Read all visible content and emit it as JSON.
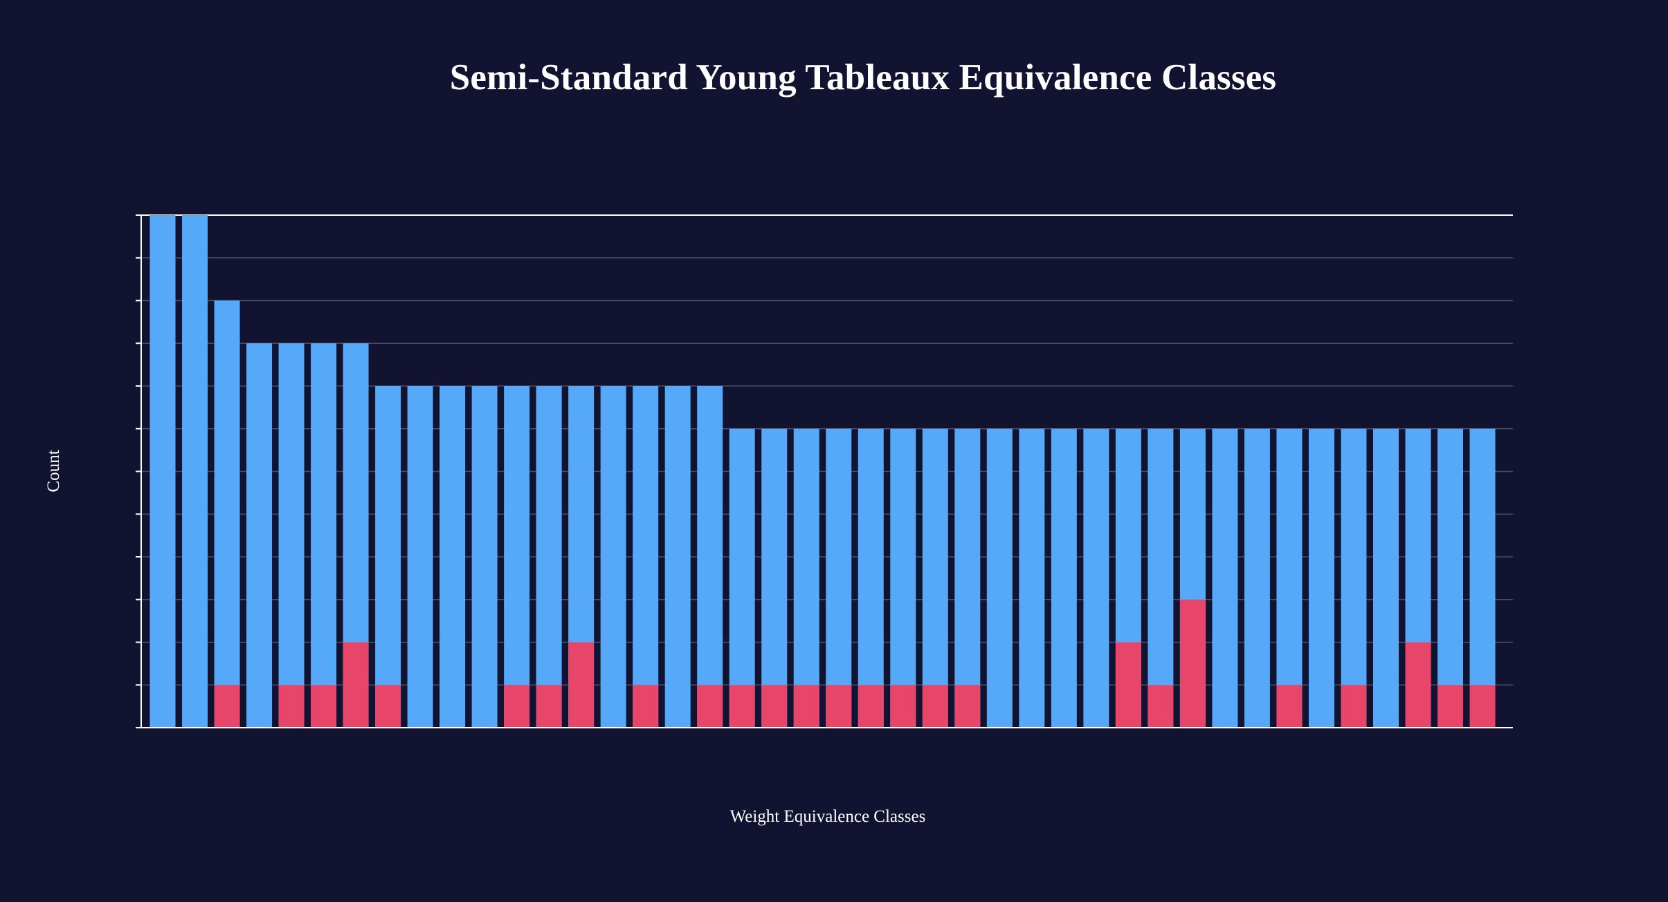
{
  "colors": {
    "background": "#111331",
    "bar_total": "#56a8f8",
    "bar_highlight": "#e8456a",
    "grid": "#4a4d66",
    "axis": "#ffffff",
    "text": "#ffffff"
  },
  "chart_data": {
    "type": "bar",
    "title": "Semi-Standard Young Tableaux Equivalence Classes",
    "xlabel": "Weight Equivalence Classes",
    "ylabel": "Count",
    "ylim": [
      0,
      12
    ],
    "grid": true,
    "barmode": "overlay",
    "tick_labels_shown": false,
    "series": [
      {
        "values": [
          12,
          12,
          10,
          9,
          9,
          9,
          9,
          8,
          8,
          8,
          8,
          8,
          8,
          8,
          8,
          8,
          8,
          8,
          7,
          7,
          7,
          7,
          7,
          7,
          7,
          7,
          7,
          7,
          7,
          7,
          7,
          7,
          7,
          7,
          7,
          7,
          7,
          7,
          7,
          7,
          7,
          7
        ]
      },
      {
        "values": [
          0,
          0,
          1,
          0,
          1,
          1,
          2,
          1,
          0,
          0,
          0,
          1,
          1,
          2,
          0,
          1,
          0,
          1,
          1,
          1,
          1,
          1,
          1,
          1,
          1,
          1,
          0,
          0,
          0,
          0,
          2,
          1,
          3,
          0,
          0,
          1,
          0,
          1,
          0,
          2,
          1,
          1
        ]
      }
    ]
  }
}
